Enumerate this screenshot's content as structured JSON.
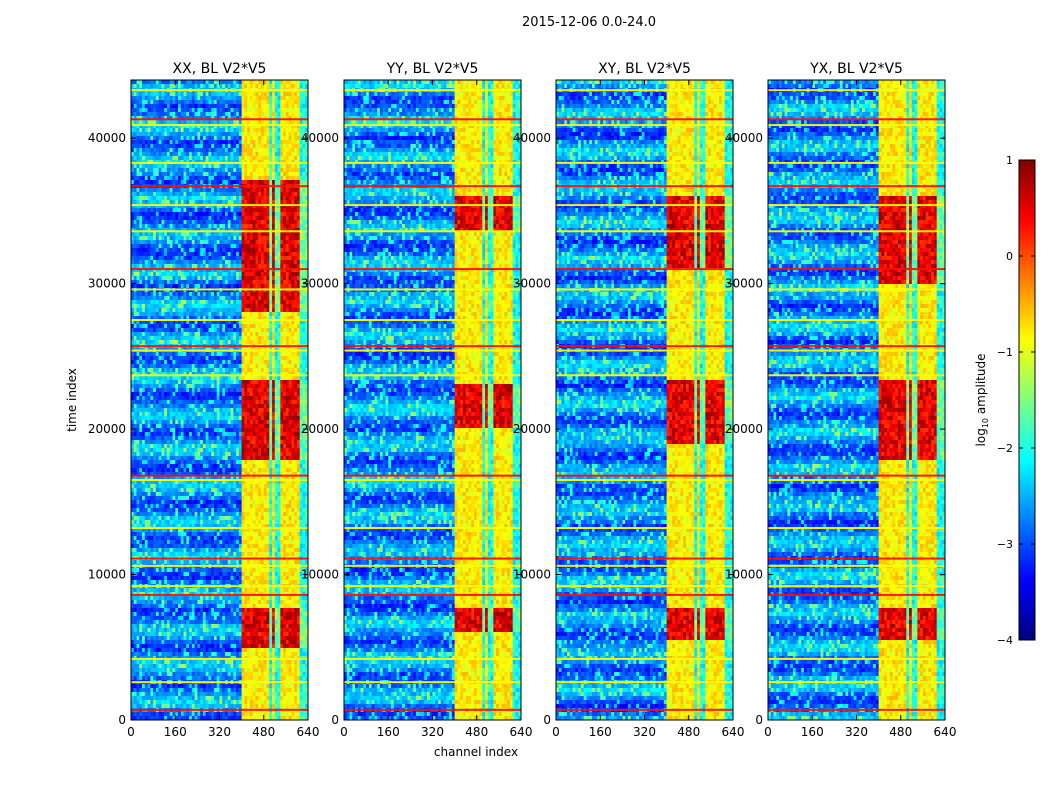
{
  "figure": {
    "suptitle": "2015-12-06 0.0-24.0",
    "xlabel": "channel index",
    "ylabel": "time index"
  },
  "colorbar": {
    "label_prefix": "log",
    "label_sub": "10",
    "label_suffix": " amplitude",
    "range": [
      -4,
      1
    ],
    "ticks": [
      1,
      0,
      -1,
      -2,
      -3,
      -4
    ],
    "tick_labels": [
      "1",
      "0",
      "−1",
      "−2",
      "−3",
      "−4"
    ],
    "colormap": "jet",
    "colors": [
      "#00007f",
      "#0000ff",
      "#007fff",
      "#00ffff",
      "#7fff7f",
      "#ffff00",
      "#ff7f00",
      "#ff0000",
      "#7f0000"
    ]
  },
  "chart_data": [
    {
      "type": "heatmap",
      "title": "XX, BL V2*V5",
      "xlim": [
        0,
        640
      ],
      "ylim": [
        0,
        44000
      ],
      "xticks": [
        0,
        160,
        320,
        480,
        640
      ],
      "yticks": [
        0,
        10000,
        20000,
        30000,
        40000
      ],
      "xtick_labels": [
        "0",
        "160",
        "320",
        "480",
        "640"
      ],
      "ytick_labels": [
        "0",
        "10000",
        "20000",
        "30000",
        "40000"
      ],
      "bright_channel_bands": [
        [
          405,
          445
        ],
        [
          455,
          500
        ],
        [
          510,
          520
        ],
        [
          545,
          590
        ],
        [
          595,
          610
        ]
      ],
      "bright_time_ranges": [
        [
          5000,
          7800
        ],
        [
          18000,
          23500
        ],
        [
          28000,
          37000
        ]
      ],
      "seed": 11
    },
    {
      "type": "heatmap",
      "title": "YY, BL V2*V5",
      "xlim": [
        0,
        640
      ],
      "ylim": [
        0,
        44000
      ],
      "xticks": [
        0,
        160,
        320,
        480,
        640
      ],
      "yticks": [
        0,
        10000,
        20000,
        30000,
        40000
      ],
      "xtick_labels": [
        "0",
        "160",
        "320",
        "480",
        "640"
      ],
      "ytick_labels": [
        "0",
        "10000",
        "20000",
        "30000",
        "40000"
      ],
      "bright_channel_bands": [
        [
          405,
          445
        ],
        [
          455,
          500
        ],
        [
          510,
          520
        ],
        [
          545,
          590
        ],
        [
          595,
          610
        ]
      ],
      "bright_time_ranges": [
        [
          6000,
          7800
        ],
        [
          20000,
          23000
        ],
        [
          33500,
          36000
        ]
      ],
      "seed": 23
    },
    {
      "type": "heatmap",
      "title": "XY, BL V2*V5",
      "xlim": [
        0,
        640
      ],
      "ylim": [
        0,
        44000
      ],
      "xticks": [
        0,
        160,
        320,
        480,
        640
      ],
      "yticks": [
        0,
        10000,
        20000,
        30000,
        40000
      ],
      "xtick_labels": [
        "0",
        "160",
        "320",
        "480",
        "640"
      ],
      "ytick_labels": [
        "0",
        "10000",
        "20000",
        "30000",
        "40000"
      ],
      "bright_channel_bands": [
        [
          405,
          445
        ],
        [
          455,
          500
        ],
        [
          510,
          520
        ],
        [
          545,
          590
        ],
        [
          595,
          610
        ]
      ],
      "bright_time_ranges": [
        [
          5500,
          7800
        ],
        [
          19000,
          23500
        ],
        [
          31000,
          36000
        ]
      ],
      "seed": 37
    },
    {
      "type": "heatmap",
      "title": "YX, BL V2*V5",
      "xlim": [
        0,
        640
      ],
      "ylim": [
        0,
        44000
      ],
      "xticks": [
        0,
        160,
        320,
        480,
        640
      ],
      "yticks": [
        0,
        10000,
        20000,
        30000,
        40000
      ],
      "xtick_labels": [
        "0",
        "160",
        "320",
        "480",
        "640"
      ],
      "ytick_labels": [
        "0",
        "10000",
        "20000",
        "30000",
        "40000"
      ],
      "bright_channel_bands": [
        [
          405,
          445
        ],
        [
          455,
          500
        ],
        [
          510,
          520
        ],
        [
          545,
          590
        ],
        [
          595,
          610
        ]
      ],
      "bright_time_ranges": [
        [
          5500,
          7800
        ],
        [
          18000,
          23500
        ],
        [
          30000,
          36000
        ]
      ],
      "seed": 53
    }
  ],
  "shared_rfi_time_rows": [
    700,
    2600,
    4200,
    8600,
    9200,
    10600,
    11100,
    13200,
    16500,
    16800,
    23700,
    25400,
    25700,
    27500,
    29600,
    31000,
    33600,
    35400,
    36700,
    38300,
    40900,
    41300,
    43300
  ]
}
